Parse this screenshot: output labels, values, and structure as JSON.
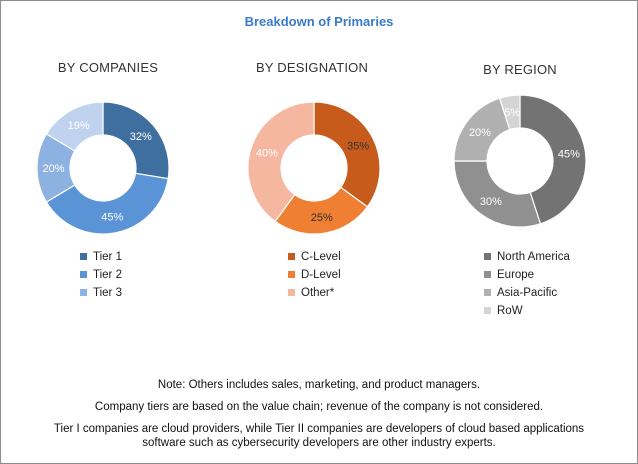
{
  "title": "Breakdown of Primaries",
  "chart_data": [
    {
      "type": "pie",
      "title": "BY COMPANIES",
      "slices": [
        {
          "label": "Tier 1",
          "value": 32,
          "color": "#3f6f9e"
        },
        {
          "label": "Tier 2",
          "value": 45,
          "color": "#5b94d6"
        },
        {
          "label": "Tier 3",
          "value": 20,
          "color": "#8db2e2"
        },
        {
          "label": "",
          "value": 19,
          "color": "#bfd3ee"
        }
      ],
      "legend": [
        "Tier 1",
        "Tier 2",
        "Tier 3"
      ]
    },
    {
      "type": "pie",
      "title": "BY DESIGNATION",
      "slices": [
        {
          "label": "C-Level",
          "value": 35,
          "color": "#c75b1c"
        },
        {
          "label": "D-Level",
          "value": 25,
          "color": "#ef7f32"
        },
        {
          "label": "Other*",
          "value": 40,
          "color": "#f5b7a0"
        }
      ],
      "legend": [
        "C-Level",
        "D-Level",
        "Other*"
      ]
    },
    {
      "type": "pie",
      "title": "BY REGION",
      "slices": [
        {
          "label": "North America",
          "value": 45,
          "color": "#737373"
        },
        {
          "label": "Europe",
          "value": 30,
          "color": "#909090"
        },
        {
          "label": "Asia-Pacific",
          "value": 20,
          "color": "#b0b0b0"
        },
        {
          "label": "RoW",
          "value": 5,
          "color": "#d4d4d4"
        }
      ],
      "legend": [
        "North America",
        "Europe",
        "Asia-Pacific",
        "RoW"
      ]
    }
  ],
  "notes": {
    "line1": "Note: Others includes sales, marketing, and product managers.",
    "line2": "Company tiers are based on the value chain; revenue of the company is not considered.",
    "line3a": "Tier I companies are cloud providers, while Tier II companies are developers of cloud based applications",
    "line3b": "software such as cybersecurity developers are other industry experts."
  }
}
